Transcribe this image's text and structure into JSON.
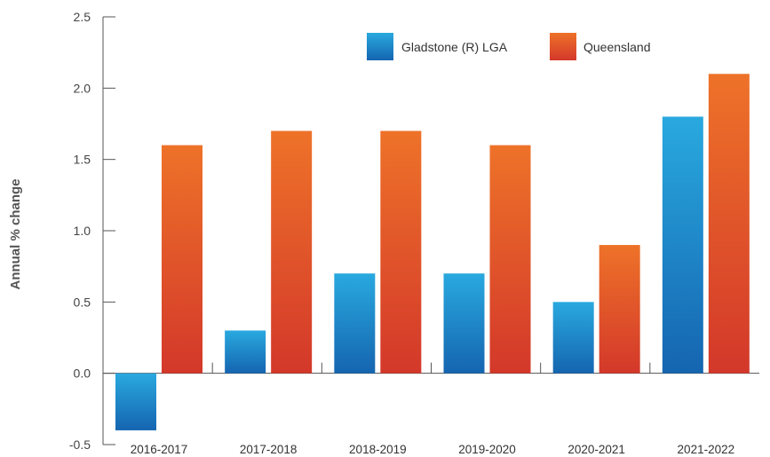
{
  "chart_data": {
    "type": "bar",
    "title": "",
    "xlabel": "",
    "ylabel": "Annual % change",
    "categories": [
      "2016-2017",
      "2017-2018",
      "2018-2019",
      "2019-2020",
      "2020-2021",
      "2021-2022"
    ],
    "series": [
      {
        "name": "Gladstone (R) LGA",
        "values": [
          -0.4,
          0.3,
          0.7,
          0.7,
          0.5,
          1.8
        ]
      },
      {
        "name": "Queensland",
        "values": [
          1.6,
          1.7,
          1.7,
          1.6,
          0.9,
          2.1
        ]
      }
    ],
    "yticks": [
      "2.5",
      "2.0",
      "1.5",
      "1.0",
      "0.5",
      "0.0",
      "-0.5"
    ],
    "ylim": [
      -0.5,
      2.5
    ],
    "grid": false,
    "legend_position": "top-right",
    "colors": {
      "Gladstone (R) LGA": [
        "#29a9df",
        "#1565b0"
      ],
      "Queensland": [
        "#ee7229",
        "#d3382a"
      ]
    }
  }
}
